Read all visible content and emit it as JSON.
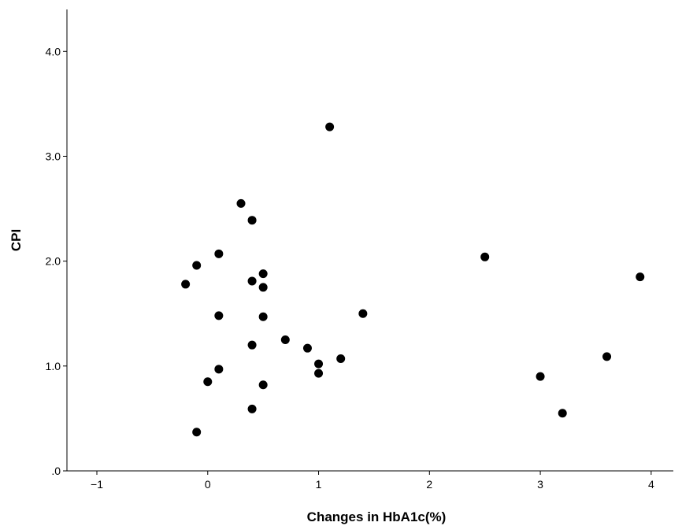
{
  "chart_data": {
    "type": "scatter",
    "title": "",
    "xlabel": "Changes in HbA1c(%)",
    "ylabel": "CPI",
    "xlim": [
      -1.27,
      4.2
    ],
    "ylim": [
      0,
      4.4
    ],
    "xticks": [
      {
        "value": -1,
        "label": "−1"
      },
      {
        "value": 0,
        "label": "0"
      },
      {
        "value": 1,
        "label": "1"
      },
      {
        "value": 2,
        "label": "2"
      },
      {
        "value": 3,
        "label": "3"
      },
      {
        "value": 4,
        "label": "4"
      }
    ],
    "yticks": [
      {
        "value": 0,
        "label": ".0"
      },
      {
        "value": 1,
        "label": "1.0"
      },
      {
        "value": 2,
        "label": "2.0"
      },
      {
        "value": 3,
        "label": "3.0"
      },
      {
        "value": 4,
        "label": "4.0"
      }
    ],
    "grid": false,
    "marker_color": "#000000",
    "points": [
      {
        "x": 1.1,
        "y": 3.28
      },
      {
        "x": 0.3,
        "y": 2.55
      },
      {
        "x": 0.4,
        "y": 2.39
      },
      {
        "x": 0.1,
        "y": 2.07
      },
      {
        "x": 2.5,
        "y": 2.04
      },
      {
        "x": -0.1,
        "y": 1.96
      },
      {
        "x": 0.5,
        "y": 1.88
      },
      {
        "x": 3.9,
        "y": 1.85
      },
      {
        "x": 0.4,
        "y": 1.81
      },
      {
        "x": -0.2,
        "y": 1.78
      },
      {
        "x": 0.5,
        "y": 1.75
      },
      {
        "x": 1.4,
        "y": 1.5
      },
      {
        "x": 0.1,
        "y": 1.48
      },
      {
        "x": 0.5,
        "y": 1.47
      },
      {
        "x": 0.7,
        "y": 1.25
      },
      {
        "x": 0.4,
        "y": 1.2
      },
      {
        "x": 0.9,
        "y": 1.17
      },
      {
        "x": 3.6,
        "y": 1.09
      },
      {
        "x": 1.2,
        "y": 1.07
      },
      {
        "x": 1.0,
        "y": 1.02
      },
      {
        "x": 0.1,
        "y": 0.97
      },
      {
        "x": 1.0,
        "y": 0.93
      },
      {
        "x": 3.0,
        "y": 0.9
      },
      {
        "x": 0.0,
        "y": 0.85
      },
      {
        "x": 0.5,
        "y": 0.82
      },
      {
        "x": 0.4,
        "y": 0.59
      },
      {
        "x": 3.2,
        "y": 0.55
      },
      {
        "x": -0.1,
        "y": 0.37
      }
    ]
  }
}
